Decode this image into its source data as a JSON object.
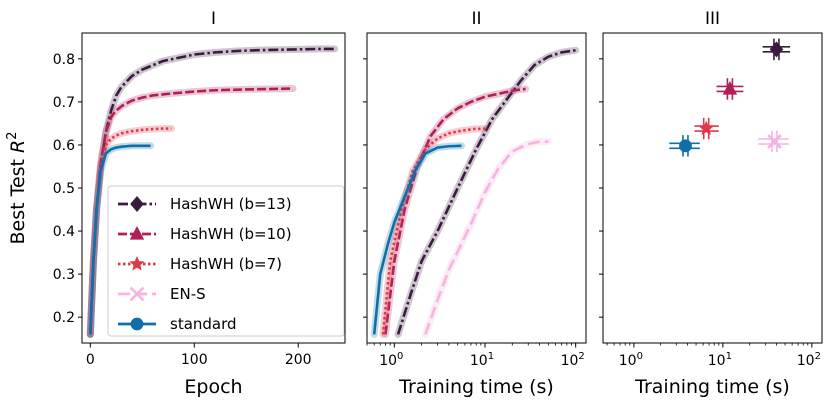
{
  "chart_data": [
    {
      "type": "line",
      "title": "I",
      "xlabel": "Epoch",
      "ylabel": "Best Test R²",
      "ylabel_main": "Best Test ",
      "ylabel_sym": "R",
      "ylabel_sup": "2",
      "xscale": "linear",
      "xlim": [
        -8,
        245
      ],
      "ylim": [
        0.14,
        0.86
      ],
      "xticks": [
        0,
        100,
        200
      ],
      "xtick_labels": [
        "0",
        "100",
        "200"
      ],
      "yticks": [
        0.2,
        0.3,
        0.4,
        0.5,
        0.6,
        0.7,
        0.8
      ],
      "ytick_labels": [
        "0.2",
        "0.3",
        "0.4",
        "0.5",
        "0.6",
        "0.7",
        "0.8"
      ],
      "legend_position": "lower-right",
      "series": [
        {
          "name": "HashWH (b=13)",
          "color": "#3b1a40",
          "dash": "dashdot",
          "marker": "diamond",
          "x": [
            0,
            3,
            6,
            10,
            15,
            20,
            25,
            30,
            40,
            50,
            60,
            70,
            80,
            100,
            120,
            140,
            160,
            180,
            200,
            220,
            235
          ],
          "y": [
            0.16,
            0.33,
            0.45,
            0.55,
            0.63,
            0.68,
            0.715,
            0.735,
            0.76,
            0.775,
            0.785,
            0.795,
            0.8,
            0.81,
            0.815,
            0.818,
            0.82,
            0.821,
            0.822,
            0.823,
            0.823
          ]
        },
        {
          "name": "HashWH (b=10)",
          "color": "#b01f58",
          "dash": "dashed",
          "marker": "triangle",
          "x": [
            0,
            3,
            6,
            10,
            15,
            20,
            25,
            30,
            40,
            50,
            60,
            80,
            100,
            120,
            150,
            175,
            195
          ],
          "y": [
            0.16,
            0.33,
            0.45,
            0.56,
            0.63,
            0.665,
            0.68,
            0.69,
            0.703,
            0.71,
            0.715,
            0.72,
            0.724,
            0.727,
            0.729,
            0.73,
            0.731
          ]
        },
        {
          "name": "HashWH (b=7)",
          "color": "#e0384a",
          "dash": "dotted",
          "marker": "star",
          "x": [
            0,
            3,
            6,
            10,
            15,
            20,
            25,
            30,
            40,
            50,
            60,
            70,
            78
          ],
          "y": [
            0.16,
            0.33,
            0.45,
            0.55,
            0.6,
            0.615,
            0.622,
            0.627,
            0.632,
            0.635,
            0.637,
            0.638,
            0.638
          ]
        },
        {
          "name": "EN-S",
          "color": "#f6b3e0",
          "dash": "longdash",
          "marker": "x",
          "x": [],
          "y": []
        },
        {
          "name": "standard",
          "color": "#0f6fa8",
          "dash": "solid",
          "marker": "circle",
          "x": [
            0,
            3,
            6,
            10,
            15,
            20,
            25,
            30,
            40,
            50,
            58
          ],
          "y": [
            0.16,
            0.33,
            0.45,
            0.54,
            0.58,
            0.59,
            0.594,
            0.596,
            0.598,
            0.598,
            0.598
          ]
        }
      ],
      "legend": [
        "HashWH (b=13)",
        "HashWH (b=10)",
        "HashWH (b=7)",
        "EN-S",
        "standard"
      ]
    },
    {
      "type": "line",
      "title": "II",
      "xlabel": "Training time (s)",
      "xscale": "log",
      "xlim": [
        0.5,
        130
      ],
      "ylim": [
        0.14,
        0.86
      ],
      "xticks": [
        1,
        10,
        100
      ],
      "xtick_labels": [
        {
          "base": "10",
          "exp": "0"
        },
        {
          "base": "10",
          "exp": "1"
        },
        {
          "base": "10",
          "exp": "2"
        }
      ],
      "series": [
        {
          "name": "HashWH (b=13)",
          "color": "#3b1a40",
          "dash": "dashdot",
          "x": [
            1.1,
            1.5,
            2,
            3,
            5,
            8,
            12,
            18,
            25,
            35,
            50,
            70,
            100
          ],
          "y": [
            0.16,
            0.25,
            0.33,
            0.4,
            0.5,
            0.59,
            0.66,
            0.71,
            0.75,
            0.785,
            0.805,
            0.815,
            0.82
          ]
        },
        {
          "name": "HashWH (b=10)",
          "color": "#b01f58",
          "dash": "dashed",
          "x": [
            0.8,
            1,
            1.3,
            1.8,
            2.5,
            3.5,
            5,
            7,
            10,
            15,
            20,
            28
          ],
          "y": [
            0.16,
            0.33,
            0.45,
            0.55,
            0.62,
            0.66,
            0.685,
            0.7,
            0.712,
            0.72,
            0.726,
            0.73
          ]
        },
        {
          "name": "HashWH (b=7)",
          "color": "#e0384a",
          "dash": "dotted",
          "x": [
            0.75,
            0.9,
            1.2,
            1.6,
            2.2,
            3,
            4,
            5.5,
            7.5,
            10
          ],
          "y": [
            0.16,
            0.33,
            0.45,
            0.54,
            0.59,
            0.615,
            0.627,
            0.633,
            0.637,
            0.638
          ]
        },
        {
          "name": "EN-S",
          "color": "#f6b3e0",
          "dash": "longdash",
          "x": [
            2.2,
            3,
            4,
            5.5,
            7.5,
            10,
            14,
            20,
            28,
            38,
            50
          ],
          "y": [
            0.16,
            0.24,
            0.31,
            0.37,
            0.43,
            0.49,
            0.545,
            0.585,
            0.6,
            0.607,
            0.608
          ]
        },
        {
          "name": "standard",
          "color": "#0f6fa8",
          "dash": "solid",
          "x": [
            0.6,
            0.7,
            0.85,
            1,
            1.3,
            1.7,
            2.2,
            3,
            4,
            5.5
          ],
          "y": [
            0.16,
            0.3,
            0.37,
            0.42,
            0.48,
            0.54,
            0.58,
            0.594,
            0.597,
            0.598
          ]
        }
      ]
    },
    {
      "type": "scatter",
      "title": "III",
      "xlabel": "Training time (s)",
      "xscale": "log",
      "xlim": [
        0.45,
        130
      ],
      "ylim": [
        0.14,
        0.86
      ],
      "xticks": [
        1,
        10,
        100
      ],
      "xtick_labels": [
        {
          "base": "10",
          "exp": "0"
        },
        {
          "base": "10",
          "exp": "1"
        },
        {
          "base": "10",
          "exp": "2"
        }
      ],
      "points": [
        {
          "name": "HashWH (b=13)",
          "color": "#3b1a40",
          "marker": "diamond",
          "x": 40,
          "y": 0.822,
          "xerr": [
            28,
            57
          ],
          "yerr": 0.025
        },
        {
          "name": "HashWH (b=10)",
          "color": "#b01f58",
          "marker": "triangle",
          "x": 12,
          "y": 0.73,
          "xerr": [
            8.5,
            17
          ],
          "yerr": 0.025
        },
        {
          "name": "HashWH (b=7)",
          "color": "#e0384a",
          "marker": "star",
          "x": 6.5,
          "y": 0.638,
          "xerr": [
            4.8,
            9
          ],
          "yerr": 0.025
        },
        {
          "name": "EN-S",
          "color": "#f6b3e0",
          "marker": "x",
          "x": 38,
          "y": 0.608,
          "xerr": [
            25,
            55
          ],
          "yerr": 0.025
        },
        {
          "name": "standard",
          "color": "#0f6fa8",
          "marker": "circle",
          "x": 3.8,
          "y": 0.598,
          "xerr": [
            2.5,
            5.5
          ],
          "yerr": 0.025
        }
      ]
    }
  ]
}
